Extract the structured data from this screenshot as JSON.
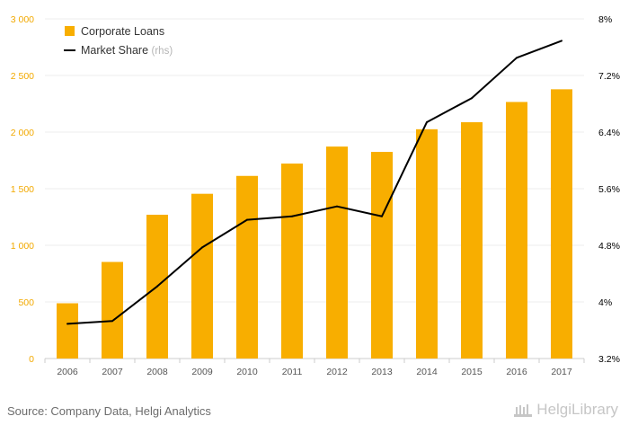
{
  "chart_data": {
    "type": "bar+line",
    "categories": [
      "2006",
      "2007",
      "2008",
      "2009",
      "2010",
      "2011",
      "2012",
      "2013",
      "2014",
      "2015",
      "2016",
      "2017"
    ],
    "series": [
      {
        "name": "Corporate Loans",
        "type": "bar",
        "axis": "left",
        "values": [
          488,
          853,
          1270,
          1455,
          1613,
          1722,
          1872,
          1825,
          2025,
          2087,
          2266,
          2378
        ]
      },
      {
        "name": "Market Share",
        "type": "line",
        "axis": "right",
        "values": [
          3.69,
          3.73,
          4.22,
          4.77,
          5.16,
          5.21,
          5.35,
          5.21,
          6.54,
          6.88,
          7.45,
          7.69
        ]
      }
    ],
    "left_axis": {
      "min": 0,
      "max": 3000,
      "ticks": [
        0,
        500,
        1000,
        1500,
        2000,
        2500,
        3000
      ],
      "tick_labels": [
        "0",
        "500",
        "1 000",
        "1 500",
        "2 000",
        "2 500",
        "3 000"
      ]
    },
    "right_axis": {
      "min": 3.2,
      "max": 8,
      "ticks": [
        3.2,
        4,
        4.8,
        5.6,
        6.4,
        7.2,
        8
      ],
      "tick_labels": [
        "3.2%",
        "4%",
        "4.8%",
        "5.6%",
        "6.4%",
        "7.2%",
        "8%"
      ]
    },
    "legend": [
      {
        "label": "Corporate Loans",
        "suffix": ""
      },
      {
        "label": "Market Share",
        "suffix": "(rhs)"
      }
    ],
    "legend_position": "top-left",
    "grid": true
  },
  "colors": {
    "bar": "#f8ae00",
    "line": "#000000",
    "grid": "#eeeeee",
    "left_tick": "#f2a900",
    "right_tick": "#000000"
  },
  "footer": {
    "source": "Source: Company Data, Helgi Analytics",
    "logo": "HelgiLibrary"
  }
}
